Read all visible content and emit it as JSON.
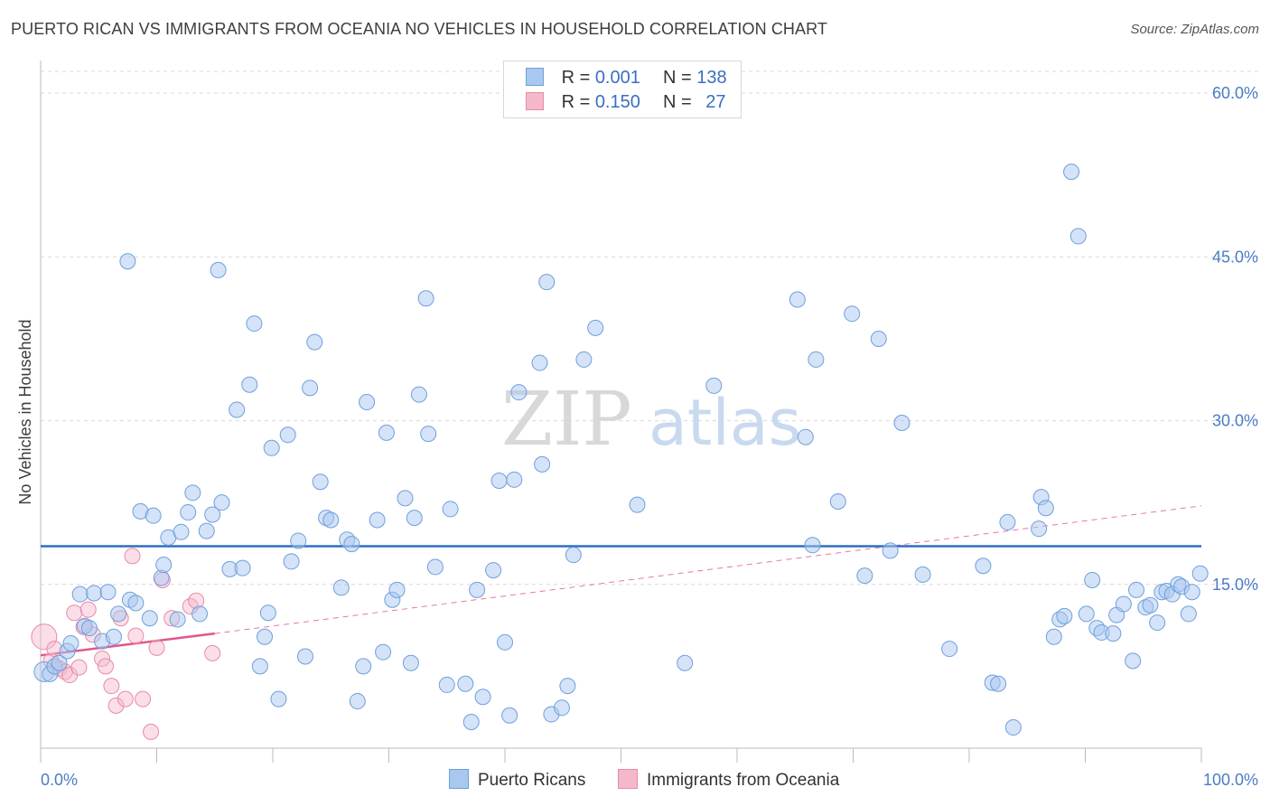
{
  "title": "PUERTO RICAN VS IMMIGRANTS FROM OCEANIA NO VEHICLES IN HOUSEHOLD CORRELATION CHART",
  "source": "Source: ZipAtlas.com",
  "watermark": {
    "zip": "ZIP",
    "atlas": "atlas"
  },
  "legend": {
    "rows": [
      {
        "r_label": "R =",
        "r_value": "0.001",
        "n_label": "N =",
        "n_value": "138"
      },
      {
        "r_label": "R =",
        "r_value": "0.150",
        "n_label": "N =",
        "n_value": "27"
      }
    ]
  },
  "bottom_legend": [
    "Puerto Ricans",
    "Immigrants from Oceania"
  ],
  "colors": {
    "blue_fill": "#a9c8ef",
    "blue_stroke": "#6f9fdc",
    "blue_line": "#2f6ec4",
    "pink_fill": "#f5b8cb",
    "pink_stroke": "#e98aa8",
    "pink_line": "#e0578a",
    "grid": "#d9d9d9",
    "tick_label": "#4a7cc7"
  },
  "chart_data": {
    "type": "scatter",
    "title": "PUERTO RICAN VS IMMIGRANTS FROM OCEANIA NO VEHICLES IN HOUSEHOLD CORRELATION CHART",
    "xlabel": "",
    "ylabel": "No Vehicles in Household",
    "xlim": [
      0,
      100
    ],
    "ylim": [
      0,
      62
    ],
    "x_tick_labels": [
      "0.0%",
      "100.0%"
    ],
    "y_ticks": [
      15,
      30,
      45,
      60
    ],
    "y_tick_labels": [
      "15.0%",
      "30.0%",
      "45.0%",
      "60.0%"
    ],
    "grid": true,
    "series": [
      {
        "name": "Puerto Ricans",
        "r": 0.001,
        "n": 138,
        "trend": {
          "x": [
            0,
            100
          ],
          "y": [
            18.5,
            18.5
          ],
          "style": "solid"
        },
        "points": [
          [
            0.3,
            7.0
          ],
          [
            0.8,
            6.8
          ],
          [
            1.2,
            7.5
          ],
          [
            1.6,
            7.8
          ],
          [
            2.3,
            8.9
          ],
          [
            2.6,
            9.6
          ],
          [
            3.4,
            14.1
          ],
          [
            3.8,
            11.2
          ],
          [
            4.2,
            11.0
          ],
          [
            4.6,
            14.2
          ],
          [
            5.3,
            9.8
          ],
          [
            5.8,
            14.3
          ],
          [
            6.3,
            10.2
          ],
          [
            6.7,
            12.3
          ],
          [
            7.5,
            44.6
          ],
          [
            7.7,
            13.6
          ],
          [
            8.2,
            13.3
          ],
          [
            8.6,
            21.7
          ],
          [
            9.4,
            11.9
          ],
          [
            9.7,
            21.3
          ],
          [
            10.4,
            15.6
          ],
          [
            10.6,
            16.8
          ],
          [
            11.0,
            19.3
          ],
          [
            11.8,
            11.8
          ],
          [
            12.1,
            19.8
          ],
          [
            12.7,
            21.6
          ],
          [
            13.1,
            23.4
          ],
          [
            13.7,
            12.3
          ],
          [
            14.3,
            19.9
          ],
          [
            14.8,
            21.4
          ],
          [
            15.3,
            43.8
          ],
          [
            15.6,
            22.5
          ],
          [
            16.3,
            16.4
          ],
          [
            16.9,
            31.0
          ],
          [
            17.4,
            16.5
          ],
          [
            18.0,
            33.3
          ],
          [
            18.4,
            38.9
          ],
          [
            18.9,
            7.5
          ],
          [
            19.3,
            10.2
          ],
          [
            19.6,
            12.4
          ],
          [
            19.9,
            27.5
          ],
          [
            20.5,
            4.5
          ],
          [
            21.3,
            28.7
          ],
          [
            21.6,
            17.1
          ],
          [
            22.2,
            19.0
          ],
          [
            22.8,
            8.4
          ],
          [
            23.2,
            33.0
          ],
          [
            23.6,
            37.2
          ],
          [
            24.1,
            24.4
          ],
          [
            24.6,
            21.1
          ],
          [
            25.0,
            20.9
          ],
          [
            25.9,
            14.7
          ],
          [
            26.4,
            19.1
          ],
          [
            26.8,
            18.7
          ],
          [
            27.3,
            4.3
          ],
          [
            27.8,
            7.5
          ],
          [
            28.1,
            31.7
          ],
          [
            29.0,
            20.9
          ],
          [
            29.5,
            8.8
          ],
          [
            29.8,
            28.9
          ],
          [
            30.3,
            13.6
          ],
          [
            30.7,
            14.5
          ],
          [
            31.4,
            22.9
          ],
          [
            31.9,
            7.8
          ],
          [
            32.2,
            21.1
          ],
          [
            32.6,
            32.4
          ],
          [
            33.2,
            41.2
          ],
          [
            33.4,
            28.8
          ],
          [
            34.0,
            16.6
          ],
          [
            35.0,
            5.8
          ],
          [
            35.3,
            21.9
          ],
          [
            36.6,
            5.9
          ],
          [
            37.1,
            2.4
          ],
          [
            37.6,
            14.5
          ],
          [
            38.1,
            4.7
          ],
          [
            39.0,
            16.3
          ],
          [
            39.5,
            24.5
          ],
          [
            40.0,
            9.7
          ],
          [
            40.4,
            3.0
          ],
          [
            40.8,
            24.6
          ],
          [
            41.2,
            32.6
          ],
          [
            43.0,
            35.3
          ],
          [
            43.2,
            26.0
          ],
          [
            43.6,
            42.7
          ],
          [
            44.0,
            3.1
          ],
          [
            44.9,
            3.7
          ],
          [
            45.4,
            5.7
          ],
          [
            45.9,
            17.7
          ],
          [
            46.8,
            35.6
          ],
          [
            47.8,
            38.5
          ],
          [
            51.4,
            22.3
          ],
          [
            55.5,
            7.8
          ],
          [
            58.0,
            33.2
          ],
          [
            65.2,
            41.1
          ],
          [
            65.9,
            28.5
          ],
          [
            66.5,
            18.6
          ],
          [
            66.8,
            35.6
          ],
          [
            68.7,
            22.6
          ],
          [
            69.9,
            39.8
          ],
          [
            71.0,
            15.8
          ],
          [
            72.2,
            37.5
          ],
          [
            73.2,
            18.1
          ],
          [
            74.2,
            29.8
          ],
          [
            76.0,
            15.9
          ],
          [
            78.3,
            9.1
          ],
          [
            81.2,
            16.7
          ],
          [
            82.0,
            6.0
          ],
          [
            82.5,
            5.9
          ],
          [
            83.3,
            20.7
          ],
          [
            83.8,
            1.9
          ],
          [
            86.0,
            20.1
          ],
          [
            86.2,
            23.0
          ],
          [
            86.6,
            22.0
          ],
          [
            87.3,
            10.2
          ],
          [
            87.8,
            11.8
          ],
          [
            88.2,
            12.1
          ],
          [
            88.8,
            52.8
          ],
          [
            89.4,
            46.9
          ],
          [
            90.1,
            12.3
          ],
          [
            90.6,
            15.4
          ],
          [
            91.0,
            11.0
          ],
          [
            91.4,
            10.6
          ],
          [
            92.4,
            10.5
          ],
          [
            92.7,
            12.2
          ],
          [
            93.3,
            13.2
          ],
          [
            94.1,
            8.0
          ],
          [
            94.4,
            14.5
          ],
          [
            95.2,
            12.9
          ],
          [
            95.6,
            13.1
          ],
          [
            96.2,
            11.5
          ],
          [
            96.6,
            14.3
          ],
          [
            97.0,
            14.4
          ],
          [
            97.5,
            14.1
          ],
          [
            98.0,
            15.0
          ],
          [
            98.3,
            14.8
          ],
          [
            98.9,
            12.3
          ],
          [
            99.2,
            14.3
          ],
          [
            99.9,
            16.0
          ]
        ]
      },
      {
        "name": "Immigrants from Oceania",
        "r": 0.15,
        "n": 27,
        "trend": {
          "x": [
            0,
            15
          ],
          "y": [
            8.5,
            10.5
          ],
          "style": "solid",
          "dashed_extension": {
            "x": [
              15,
              100
            ],
            "y": [
              10.5,
              22.2
            ]
          }
        },
        "points": [
          [
            0.3,
            10.2
          ],
          [
            0.9,
            8.0
          ],
          [
            1.2,
            9.1
          ],
          [
            1.6,
            7.3
          ],
          [
            2.1,
            7.0
          ],
          [
            2.5,
            6.7
          ],
          [
            2.9,
            12.4
          ],
          [
            3.3,
            7.4
          ],
          [
            3.7,
            11.1
          ],
          [
            4.1,
            12.7
          ],
          [
            4.5,
            10.4
          ],
          [
            5.3,
            8.2
          ],
          [
            5.6,
            7.5
          ],
          [
            6.1,
            5.7
          ],
          [
            6.5,
            3.9
          ],
          [
            6.9,
            11.9
          ],
          [
            7.3,
            4.5
          ],
          [
            7.9,
            17.6
          ],
          [
            8.2,
            10.3
          ],
          [
            8.8,
            4.5
          ],
          [
            9.5,
            1.5
          ],
          [
            10.0,
            9.2
          ],
          [
            10.5,
            15.4
          ],
          [
            11.3,
            11.9
          ],
          [
            12.9,
            13.0
          ],
          [
            13.4,
            13.5
          ],
          [
            14.8,
            8.7
          ]
        ]
      }
    ]
  }
}
